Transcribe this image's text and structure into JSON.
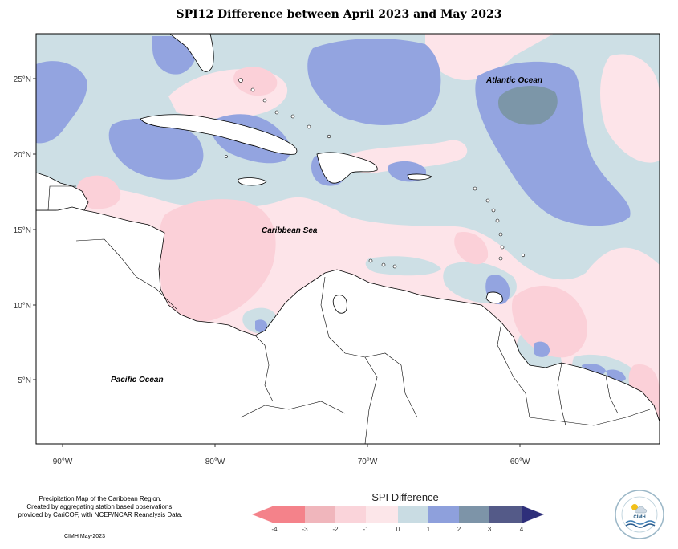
{
  "title": "SPI12 Difference between April 2023 and May 2023",
  "labels": {
    "atlantic": "Atlantic Ocean",
    "caribbean": "Caribbean Sea",
    "pacific": "Pacific Ocean"
  },
  "axes": {
    "lon_ticks": [
      "90°W",
      "80°W",
      "70°W",
      "60°W"
    ],
    "lat_ticks": [
      "25°N",
      "20°N",
      "15°N",
      "10°N",
      "5°N"
    ]
  },
  "credit": {
    "lines": [
      "Precipitation Map of the Caribbean Region.",
      "Created by aggregating station based observations,",
      "provided by CariCOF, with NCEP/NCAR Reanalysis Data."
    ],
    "date": "CIMH May-2023"
  },
  "legend": {
    "title": "SPI Difference",
    "ticks": [
      "-4",
      "-3",
      "-2",
      "-1",
      "0",
      "1",
      "2",
      "3",
      "4"
    ],
    "colors": [
      "#f4828a",
      "#f0b6bc",
      "#fad4da",
      "#fce6e9",
      "#c9dce3",
      "#8ea0dc",
      "#7d94a8",
      "#545a88",
      "#2e2f7a"
    ]
  },
  "logo": {
    "name": "CIMH",
    "ring_text": "Caribbean Institute for Meteorology and Hydrology"
  },
  "colors": {
    "pink_light": "#fde4e9",
    "pink": "#fbd0d8",
    "blue_light": "#cddfe5",
    "blue": "#93a4e0",
    "blue_dark": "#7c96a8"
  }
}
